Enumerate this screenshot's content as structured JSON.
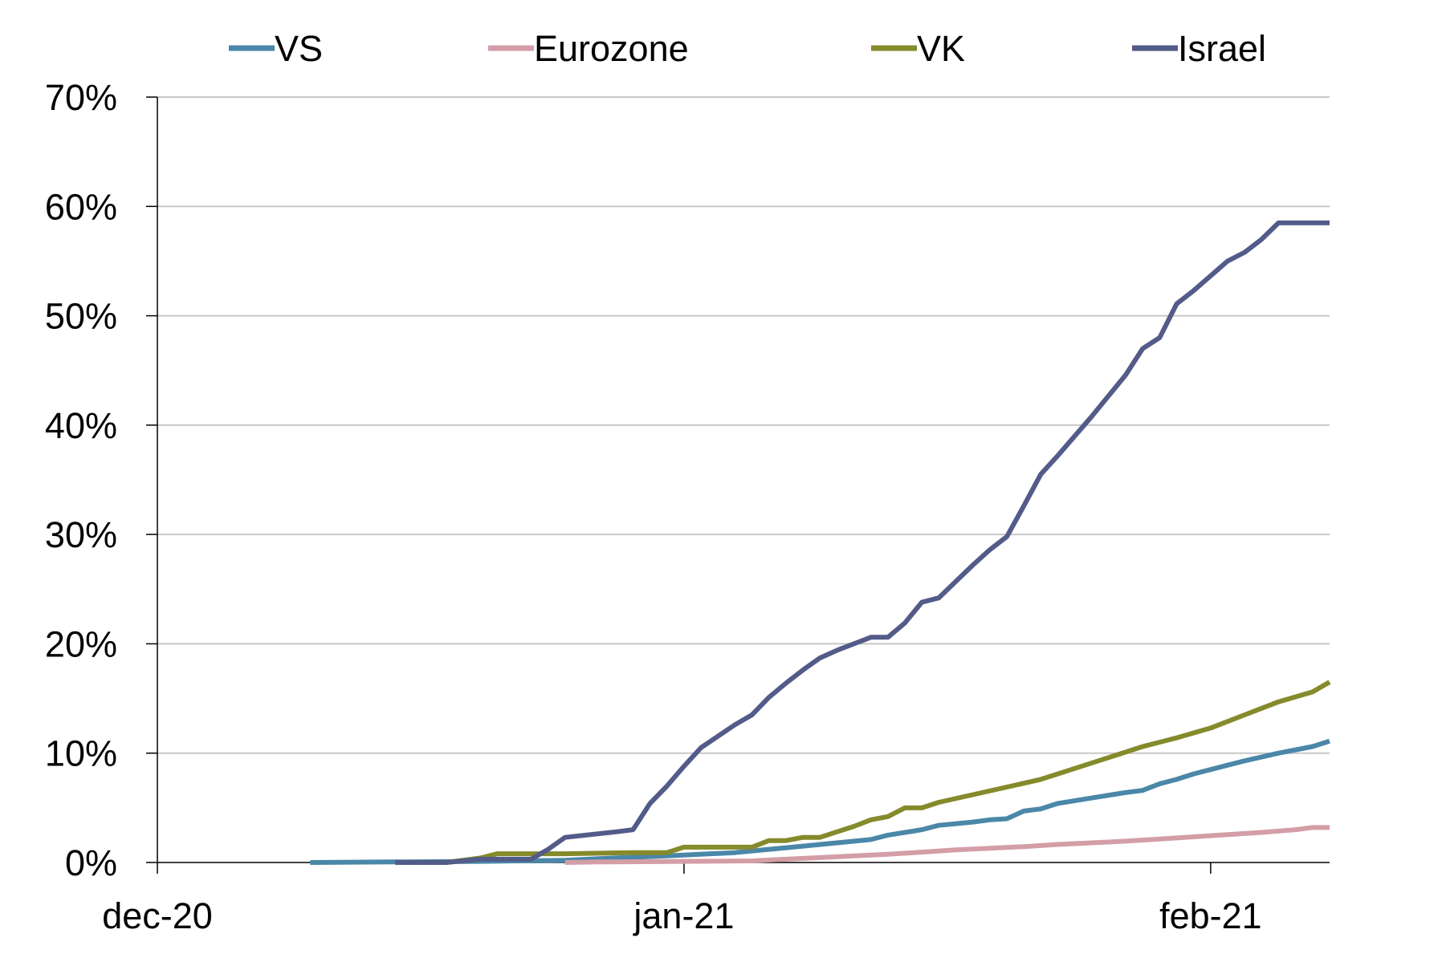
{
  "chart_data": {
    "type": "line",
    "title": "",
    "xlabel": "",
    "ylabel": "",
    "x_tick_labels": [
      "dec-20",
      "jan-21",
      "feb-21"
    ],
    "y_tick_labels": [
      "0%",
      "10%",
      "20%",
      "30%",
      "40%",
      "50%",
      "60%",
      "70%"
    ],
    "ylim": [
      0,
      70
    ],
    "xlim": [
      "2020-12-01",
      "2021-02-08"
    ],
    "y_unit": "%",
    "grid": "horizontal",
    "legend_position": "top",
    "series": [
      {
        "name": "VS",
        "color": "#4a87a8",
        "points": [
          [
            "2020-12-10",
            0.0
          ],
          [
            "2020-12-15",
            0.05
          ],
          [
            "2020-12-20",
            0.1
          ],
          [
            "2020-12-25",
            0.2
          ],
          [
            "2020-12-27",
            0.35
          ],
          [
            "2020-12-31",
            0.6
          ],
          [
            "2021-01-04",
            0.9
          ],
          [
            "2021-01-06",
            1.2
          ],
          [
            "2021-01-08",
            1.5
          ],
          [
            "2021-01-10",
            1.8
          ],
          [
            "2021-01-12",
            2.1
          ],
          [
            "2021-01-13",
            2.5
          ],
          [
            "2021-01-15",
            3.0
          ],
          [
            "2021-01-16",
            3.4
          ],
          [
            "2021-01-18",
            3.7
          ],
          [
            "2021-01-19",
            3.9
          ],
          [
            "2021-01-20",
            4.0
          ],
          [
            "2021-01-21",
            4.7
          ],
          [
            "2021-01-22",
            4.9
          ],
          [
            "2021-01-23",
            5.4
          ],
          [
            "2021-01-25",
            5.9
          ],
          [
            "2021-01-27",
            6.4
          ],
          [
            "2021-01-28",
            6.6
          ],
          [
            "2021-01-29",
            7.2
          ],
          [
            "2021-01-30",
            7.6
          ],
          [
            "2021-01-31",
            8.1
          ],
          [
            "2021-02-02",
            8.9
          ],
          [
            "2021-02-03",
            9.3
          ],
          [
            "2021-02-05",
            10.0
          ],
          [
            "2021-02-07",
            10.6
          ],
          [
            "2021-02-08",
            11.1
          ]
        ]
      },
      {
        "name": "Eurozone",
        "color": "#d49ea7",
        "points": [
          [
            "2020-12-25",
            0.0
          ],
          [
            "2020-12-27",
            0.05
          ],
          [
            "2021-01-01",
            0.1
          ],
          [
            "2021-01-05",
            0.15
          ],
          [
            "2021-01-07",
            0.3
          ],
          [
            "2021-01-09",
            0.45
          ],
          [
            "2021-01-11",
            0.6
          ],
          [
            "2021-01-13",
            0.75
          ],
          [
            "2021-01-15",
            0.95
          ],
          [
            "2021-01-17",
            1.15
          ],
          [
            "2021-01-19",
            1.3
          ],
          [
            "2021-01-21",
            1.45
          ],
          [
            "2021-01-23",
            1.65
          ],
          [
            "2021-01-25",
            1.8
          ],
          [
            "2021-01-27",
            1.95
          ],
          [
            "2021-01-29",
            2.15
          ],
          [
            "2021-01-31",
            2.35
          ],
          [
            "2021-02-02",
            2.55
          ],
          [
            "2021-02-04",
            2.75
          ],
          [
            "2021-02-06",
            3.0
          ],
          [
            "2021-02-07",
            3.2
          ],
          [
            "2021-02-08",
            3.2
          ]
        ]
      },
      {
        "name": "VK",
        "color": "#858a2b",
        "points": [
          [
            "2020-12-18",
            0.0
          ],
          [
            "2020-12-20",
            0.4
          ],
          [
            "2020-12-21",
            0.8
          ],
          [
            "2020-12-25",
            0.8
          ],
          [
            "2020-12-29",
            0.9
          ],
          [
            "2020-12-31",
            0.9
          ],
          [
            "2021-01-01",
            1.4
          ],
          [
            "2021-01-05",
            1.4
          ],
          [
            "2021-01-06",
            2.0
          ],
          [
            "2021-01-07",
            2.0
          ],
          [
            "2021-01-08",
            2.3
          ],
          [
            "2021-01-09",
            2.3
          ],
          [
            "2021-01-10",
            2.8
          ],
          [
            "2021-01-11",
            3.3
          ],
          [
            "2021-01-12",
            3.9
          ],
          [
            "2021-01-13",
            4.2
          ],
          [
            "2021-01-14",
            5.0
          ],
          [
            "2021-01-15",
            5.0
          ],
          [
            "2021-01-16",
            5.5
          ],
          [
            "2021-01-18",
            6.2
          ],
          [
            "2021-01-20",
            6.9
          ],
          [
            "2021-01-22",
            7.6
          ],
          [
            "2021-01-24",
            8.6
          ],
          [
            "2021-01-26",
            9.6
          ],
          [
            "2021-01-28",
            10.6
          ],
          [
            "2021-01-30",
            11.4
          ],
          [
            "2021-02-01",
            12.3
          ],
          [
            "2021-02-03",
            13.5
          ],
          [
            "2021-02-05",
            14.7
          ],
          [
            "2021-02-07",
            15.6
          ],
          [
            "2021-02-08",
            16.5
          ]
        ]
      },
      {
        "name": "Israel",
        "color": "#535b89",
        "points": [
          [
            "2020-12-15",
            0.0
          ],
          [
            "2020-12-18",
            0.0
          ],
          [
            "2020-12-20",
            0.3
          ],
          [
            "2020-12-23",
            0.3
          ],
          [
            "2020-12-24",
            1.2
          ],
          [
            "2020-12-25",
            2.3
          ],
          [
            "2020-12-28",
            2.8
          ],
          [
            "2020-12-29",
            3.0
          ],
          [
            "2020-12-30",
            5.4
          ],
          [
            "2020-12-31",
            7.0
          ],
          [
            "2021-01-01",
            8.8
          ],
          [
            "2021-01-02",
            10.5
          ],
          [
            "2021-01-04",
            12.6
          ],
          [
            "2021-01-05",
            13.5
          ],
          [
            "2021-01-06",
            15.1
          ],
          [
            "2021-01-07",
            16.4
          ],
          [
            "2021-01-08",
            17.6
          ],
          [
            "2021-01-09",
            18.7
          ],
          [
            "2021-01-10",
            19.4
          ],
          [
            "2021-01-11",
            20.0
          ],
          [
            "2021-01-12",
            20.6
          ],
          [
            "2021-01-13",
            20.6
          ],
          [
            "2021-01-14",
            21.9
          ],
          [
            "2021-01-15",
            23.8
          ],
          [
            "2021-01-16",
            24.2
          ],
          [
            "2021-01-17",
            25.7
          ],
          [
            "2021-01-18",
            27.2
          ],
          [
            "2021-01-19",
            28.6
          ],
          [
            "2021-01-20",
            29.8
          ],
          [
            "2021-01-21",
            32.6
          ],
          [
            "2021-01-22",
            35.5
          ],
          [
            "2021-01-23",
            37.2
          ],
          [
            "2021-01-25",
            40.8
          ],
          [
            "2021-01-27",
            44.6
          ],
          [
            "2021-01-28",
            47.0
          ],
          [
            "2021-01-29",
            48.0
          ],
          [
            "2021-01-30",
            51.1
          ],
          [
            "2021-01-31",
            52.3
          ],
          [
            "2021-02-02",
            55.0
          ],
          [
            "2021-02-03",
            55.8
          ],
          [
            "2021-02-04",
            57.0
          ],
          [
            "2021-02-05",
            58.5
          ],
          [
            "2021-02-06",
            58.5
          ],
          [
            "2021-02-08",
            58.5
          ]
        ]
      }
    ]
  }
}
